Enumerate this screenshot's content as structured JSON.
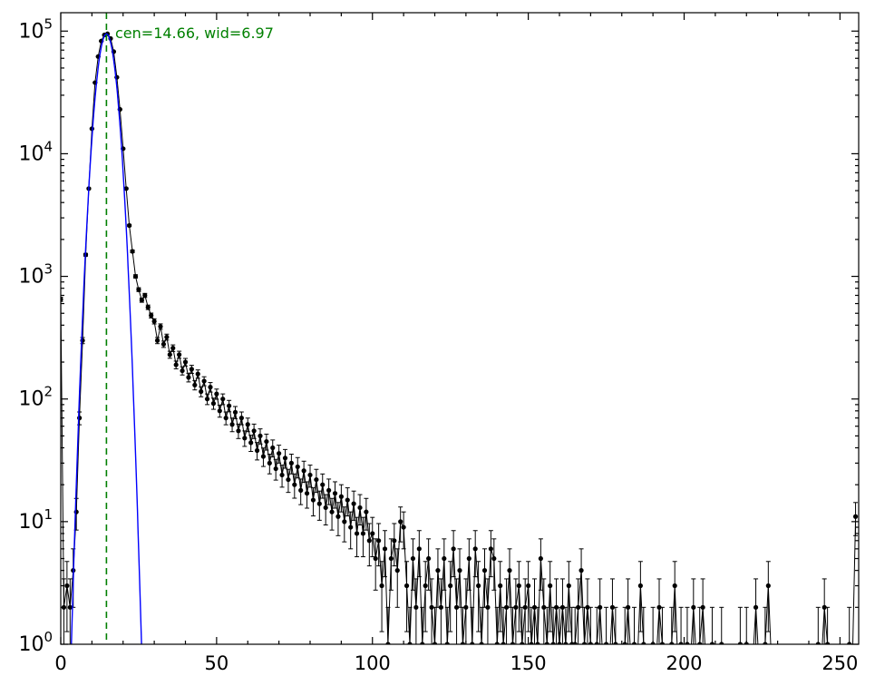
{
  "figure": {
    "background": "#ffffff",
    "frame_color": "#000000"
  },
  "annotation": {
    "text": "cen=14.66, wid=6.97",
    "color": "#008000"
  },
  "axes": {
    "x_ticks": [
      0,
      50,
      100,
      150,
      200,
      250
    ],
    "x_minor_step": 10,
    "y_tick_base": "10",
    "y_tick_exponents": [
      0,
      1,
      2,
      3,
      4,
      5
    ],
    "xlim": [
      0,
      256
    ],
    "ylim_log10": [
      0,
      5.15
    ],
    "grid": false,
    "scale_y": "log"
  },
  "chart_data": {
    "type": "line",
    "title": "",
    "xlabel": "",
    "ylabel": "",
    "legend": "none",
    "series": [
      {
        "name": "histogram-errorbar",
        "color": "#000000",
        "marker": "point",
        "errorbars": "poisson-sqrt",
        "x_start": 0,
        "x_step": 1,
        "counts": [
          650,
          2,
          3,
          2,
          4,
          12,
          70,
          300,
          1500,
          5200,
          16000,
          38000,
          62000,
          83000,
          93000,
          95000,
          87000,
          68000,
          42000,
          23000,
          11000,
          5200,
          2600,
          1600,
          1000,
          780,
          640,
          700,
          560,
          480,
          430,
          300,
          390,
          280,
          320,
          230,
          260,
          190,
          230,
          170,
          200,
          150,
          175,
          130,
          160,
          115,
          140,
          100,
          125,
          92,
          110,
          80,
          100,
          70,
          88,
          62,
          78,
          55,
          70,
          48,
          62,
          44,
          55,
          38,
          50,
          34,
          45,
          30,
          40,
          27,
          36,
          24,
          33,
          22,
          30,
          20,
          28,
          18,
          26,
          17,
          24,
          15,
          22,
          14,
          20,
          13,
          18,
          12,
          17,
          11,
          16,
          10,
          15,
          9,
          14,
          8,
          13,
          8,
          12,
          7,
          8,
          5,
          7,
          3,
          6,
          1,
          5,
          7,
          4,
          10,
          9,
          3,
          1,
          5,
          2,
          6,
          1,
          3,
          5,
          2,
          1,
          4,
          2,
          5,
          1,
          3,
          6,
          2,
          4,
          1,
          2,
          5,
          1,
          6,
          3,
          1,
          4,
          2,
          6,
          5,
          1,
          3,
          1,
          2,
          4,
          1,
          2,
          3,
          1,
          2,
          3,
          1,
          2,
          1,
          5,
          2,
          1,
          3,
          1,
          2,
          1,
          2,
          1,
          3,
          1,
          1,
          2,
          4,
          1,
          2,
          1,
          0,
          1,
          2,
          0,
          1,
          0,
          2,
          1,
          0,
          0,
          1,
          2,
          0,
          1,
          0,
          3,
          1,
          0,
          0,
          1,
          0,
          2,
          1,
          0,
          0,
          1,
          3,
          0,
          1,
          0,
          1,
          0,
          2,
          0,
          1,
          2,
          0,
          0,
          1,
          0,
          0,
          1,
          0,
          0,
          0,
          0,
          0,
          1,
          0,
          1,
          0,
          0,
          2,
          0,
          0,
          1,
          3,
          0,
          0,
          0,
          0,
          0,
          0,
          0,
          0,
          0,
          0,
          0,
          0,
          0,
          0,
          0,
          1,
          0,
          2,
          1,
          0,
          0,
          0,
          0,
          0,
          0,
          1,
          0,
          11
        ]
      },
      {
        "name": "gaussian-fit",
        "color": "#0000ff",
        "amplitude": 95000,
        "center": 14.66,
        "sigma": 2.35,
        "label_cen": 14.66,
        "label_wid": 6.97
      },
      {
        "name": "center-line",
        "color": "#008000",
        "style": "dashed",
        "x": 14.66
      }
    ]
  }
}
